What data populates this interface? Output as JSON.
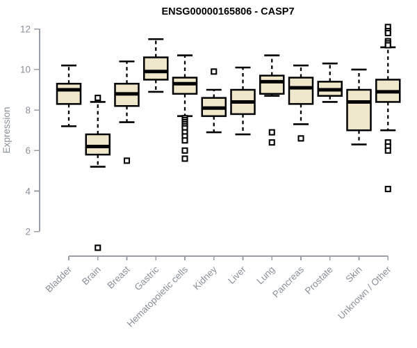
{
  "figure": {
    "background": "#ffffff"
  },
  "colors": {
    "box_fill": "#eee7cb",
    "box_border": "#000000",
    "median": "#000000",
    "whisker": "#000000",
    "outlier_border": "#000000",
    "outlier_fill": "#ffffff",
    "axis_line": "#9aa0a6",
    "axis_text": "#8a9099",
    "title": "#000000"
  },
  "chart_data": {
    "type": "boxplot",
    "title": "ENSG00000165806 - CASP7",
    "xlabel": "",
    "ylabel": "Expression",
    "yticks": [
      2,
      4,
      6,
      8,
      10,
      12
    ],
    "ylim": [
      2,
      12
    ],
    "grid": false,
    "legend": "none",
    "categories": [
      "Bladder",
      "Brain",
      "Breast",
      "Gastric",
      "Hematopoietic cells",
      "Kidney",
      "Liver",
      "Lung",
      "Pancreas",
      "Prostate",
      "Skin",
      "Unknown / Other"
    ],
    "boxes": [
      {
        "category": "Bladder",
        "low": 7.2,
        "q1": 8.3,
        "median": 9.0,
        "q3": 9.3,
        "high": 10.2,
        "outliers": []
      },
      {
        "category": "Brain",
        "low": 5.2,
        "q1": 5.8,
        "median": 6.2,
        "q3": 6.8,
        "high": 8.4,
        "outliers": [
          8.6,
          1.2
        ]
      },
      {
        "category": "Breast",
        "low": 7.4,
        "q1": 8.2,
        "median": 8.8,
        "q3": 9.3,
        "high": 10.4,
        "outliers": [
          5.5
        ]
      },
      {
        "category": "Gastric",
        "low": 8.9,
        "q1": 9.5,
        "median": 9.9,
        "q3": 10.6,
        "high": 11.5,
        "outliers": []
      },
      {
        "category": "Hematopoietic cells",
        "low": 7.7,
        "q1": 8.8,
        "median": 9.3,
        "q3": 9.6,
        "high": 10.7,
        "outliers": [
          7.6,
          7.5,
          7.4,
          7.3,
          7.2,
          7.1,
          6.9,
          6.7,
          6.5,
          6.0,
          5.6
        ]
      },
      {
        "category": "Kidney",
        "low": 6.9,
        "q1": 7.7,
        "median": 8.1,
        "q3": 8.6,
        "high": 9.0,
        "outliers": [
          9.9
        ]
      },
      {
        "category": "Liver",
        "low": 6.8,
        "q1": 7.8,
        "median": 8.4,
        "q3": 9.0,
        "high": 10.1,
        "outliers": []
      },
      {
        "category": "Lung",
        "low": 8.7,
        "q1": 8.8,
        "median": 9.4,
        "q3": 9.7,
        "high": 10.7,
        "outliers": [
          6.9,
          6.4
        ]
      },
      {
        "category": "Pancreas",
        "low": 7.3,
        "q1": 8.3,
        "median": 9.1,
        "q3": 9.6,
        "high": 10.2,
        "outliers": [
          6.6
        ]
      },
      {
        "category": "Prostate",
        "low": 8.4,
        "q1": 8.7,
        "median": 9.0,
        "q3": 9.4,
        "high": 10.3,
        "outliers": []
      },
      {
        "category": "Skin",
        "low": 6.3,
        "q1": 7.0,
        "median": 8.4,
        "q3": 9.0,
        "high": 10.0,
        "outliers": []
      },
      {
        "category": "Unknown / Other",
        "low": 7.0,
        "q1": 8.4,
        "median": 8.9,
        "q3": 9.5,
        "high": 11.1,
        "outliers": [
          12.1,
          11.9,
          11.8,
          11.4,
          11.3,
          11.2,
          6.4,
          6.2,
          6.0,
          4.1
        ]
      }
    ]
  }
}
